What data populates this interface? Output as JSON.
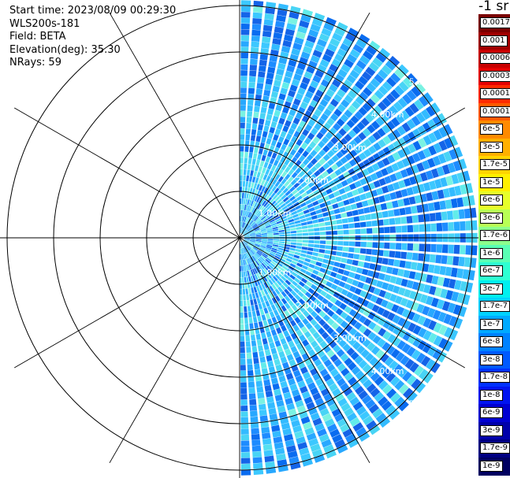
{
  "header": {
    "start_time": "Start time: 2023/08/09 00:29:30",
    "instrument": "WLS200s-181",
    "field": "Field: BETA",
    "elevation": "Elevation(deg): 35.30",
    "nrays": "NRays: 59"
  },
  "colorbar": {
    "unit_label": "-1 sr",
    "labels": [
      "0.0017",
      "0.001",
      "0.0006",
      "0.0003",
      "0.00017",
      "0.0001",
      "6e-5",
      "3e-5",
      "1.7e-5",
      "1e-5",
      "6e-6",
      "3e-6",
      "1.7e-6",
      "1e-6",
      "6e-7",
      "3e-7",
      "1.7e-7",
      "1e-7",
      "6e-8",
      "3e-8",
      "1.7e-8",
      "1e-8",
      "6e-9",
      "3e-9",
      "1.7e-9",
      "1e-9"
    ],
    "colors": [
      "#7a0000",
      "#a00000",
      "#c80000",
      "#e60000",
      "#ff2a00",
      "#ff5a00",
      "#ff8a00",
      "#ffb000",
      "#ffd400",
      "#fff000",
      "#e6ff2a",
      "#b8ff55",
      "#8cff8c",
      "#5affb4",
      "#2effd2",
      "#00f0f0",
      "#00d2ff",
      "#00aaff",
      "#0082ff",
      "#005aff",
      "#0032ff",
      "#0014f0",
      "#0000d2",
      "#0000aa",
      "#000082",
      "#000060"
    ]
  },
  "range_ring_labels": [
    "1.00km",
    "2.00km",
    "3.00km",
    "4.00km",
    "5.00km"
  ]
}
